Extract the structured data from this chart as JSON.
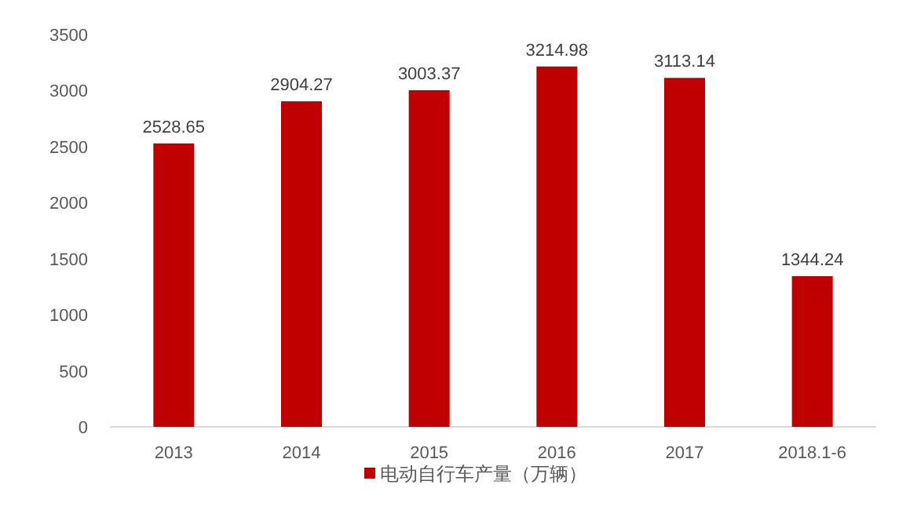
{
  "chart_data": {
    "type": "bar",
    "categories": [
      "2013",
      "2014",
      "2015",
      "2016",
      "2017",
      "2018.1-6"
    ],
    "series": [
      {
        "name": "电动自行车产量（万辆）",
        "color": "#c00000",
        "values": [
          2528.65,
          2904.27,
          3003.37,
          3214.98,
          3113.14,
          1344.24
        ]
      }
    ],
    "ylim": [
      0,
      3500
    ],
    "yticks": [
      0,
      500,
      1000,
      1500,
      2000,
      2500,
      3000,
      3500
    ],
    "data_labels": true,
    "legend": "bottom"
  }
}
